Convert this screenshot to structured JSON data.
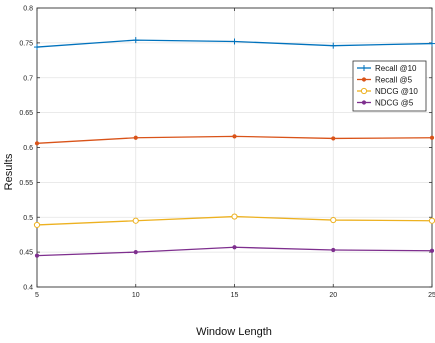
{
  "chart_data": {
    "type": "line",
    "title": "",
    "xlabel": "Window Length",
    "ylabel": "Results",
    "x": [
      5,
      10,
      15,
      20,
      25
    ],
    "xlim": [
      5,
      25
    ],
    "ylim": [
      0.4,
      0.8
    ],
    "xticks": [
      "5",
      "10",
      "15",
      "20",
      "25"
    ],
    "yticks": [
      "0.4",
      "0.45",
      "0.5",
      "0.55",
      "0.6",
      "0.65",
      "0.7",
      "0.75",
      "0.8"
    ],
    "grid": true,
    "legend_position": "upper-right",
    "series": [
      {
        "name": "Recall @10",
        "color": "#0072BD",
        "marker": "plus",
        "values": [
          0.744,
          0.754,
          0.752,
          0.746,
          0.749
        ]
      },
      {
        "name": "Recall @5",
        "color": "#D95319",
        "marker": "dot",
        "values": [
          0.606,
          0.614,
          0.616,
          0.613,
          0.614
        ]
      },
      {
        "name": "NDCG @10",
        "color": "#EDB120",
        "marker": "circle",
        "values": [
          0.489,
          0.495,
          0.501,
          0.496,
          0.495
        ]
      },
      {
        "name": "NDCG @5",
        "color": "#7E2F8E",
        "marker": "dot",
        "values": [
          0.445,
          0.45,
          0.457,
          0.453,
          0.452
        ]
      }
    ]
  }
}
